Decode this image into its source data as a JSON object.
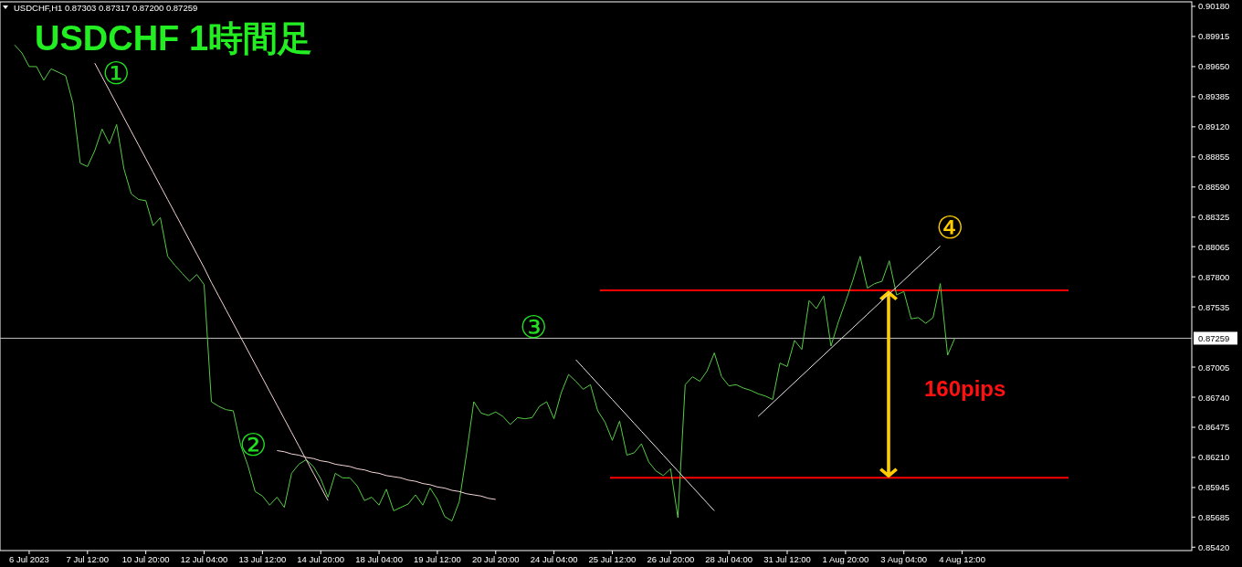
{
  "chart_data": {
    "type": "line",
    "title": "USDCHF 1時間足",
    "annotations": [
      "USDCHF,H1 0.87303 0.87317 0.87200 0.87259",
      "①",
      "②",
      "③",
      "④",
      "160pips"
    ],
    "categories": [
      null,
      null,
      "6 Jul 2023",
      null,
      null,
      null,
      null,
      null,
      null,
      null,
      "7 Jul 12:00",
      null,
      null,
      null,
      null,
      null,
      null,
      null,
      "10 Jul 20:00",
      null,
      null,
      null,
      null,
      null,
      null,
      null,
      "12 Jul 04:00",
      null,
      null,
      null,
      null,
      null,
      null,
      null,
      "13 Jul 12:00",
      null,
      null,
      null,
      null,
      null,
      null,
      null,
      "14 Jul 20:00",
      null,
      null,
      null,
      null,
      null,
      null,
      null,
      "18 Jul 04:00",
      null,
      null,
      null,
      null,
      null,
      null,
      null,
      "19 Jul 12:00",
      null,
      null,
      null,
      null,
      null,
      null,
      null,
      "20 Jul 20:00",
      null,
      null,
      null,
      null,
      null,
      null,
      null,
      "24 Jul 04:00",
      null,
      null,
      null,
      null,
      null,
      null,
      null,
      "25 Jul 12:00",
      null,
      null,
      null,
      null,
      null,
      null,
      null,
      "26 Jul 20:00",
      null,
      null,
      null,
      null,
      null,
      null,
      null,
      "28 Jul 04:00",
      null,
      null,
      null,
      null,
      null,
      null,
      null,
      "31 Jul 12:00",
      null,
      null,
      null,
      null,
      null,
      null,
      null,
      "1 Aug 20:00",
      null,
      null,
      null,
      null,
      null,
      null,
      null,
      "3 Aug 04:00",
      null,
      null,
      null,
      null,
      null,
      null,
      null,
      "4 Aug 12:00",
      null,
      null,
      null,
      null,
      null,
      null,
      null,
      null,
      null,
      null,
      null,
      null,
      null,
      null,
      null,
      null,
      null,
      null,
      null,
      null,
      null,
      null,
      null,
      null,
      null,
      null,
      null,
      null,
      null,
      null,
      null
    ],
    "ylim": [
      0.8539,
      0.9022
    ],
    "yticks": [
      {
        "value": 0.9018,
        "label": "0.90180"
      },
      {
        "value": 0.89915,
        "label": "0.89915"
      },
      {
        "value": 0.8965,
        "label": "0.89650"
      },
      {
        "value": 0.89385,
        "label": "0.89385"
      },
      {
        "value": 0.8912,
        "label": "0.89120"
      },
      {
        "value": 0.88855,
        "label": "0.88855"
      },
      {
        "value": 0.8859,
        "label": "0.88590"
      },
      {
        "value": 0.88325,
        "label": "0.88325"
      },
      {
        "value": 0.88065,
        "label": "0.88065"
      },
      {
        "value": 0.878,
        "label": "0.87800"
      },
      {
        "value": 0.87535,
        "label": "0.87535"
      },
      {
        "value": 0.87005,
        "label": "0.87005"
      },
      {
        "value": 0.8674,
        "label": "0.86740"
      },
      {
        "value": 0.86475,
        "label": "0.86475"
      },
      {
        "value": 0.8621,
        "label": "0.86210"
      },
      {
        "value": 0.85945,
        "label": "0.85945"
      },
      {
        "value": 0.85685,
        "label": "0.85685"
      },
      {
        "value": 0.8542,
        "label": "0.85420"
      }
    ],
    "ref_lines": [
      {
        "axis": "y",
        "value": 0.87259,
        "label": "0.87259",
        "color": "#c0c0c0"
      },
      {
        "axis": "y",
        "value": 0.8768,
        "color": "#ff0000"
      },
      {
        "axis": "y",
        "value": 0.8603,
        "color": "#ff0000"
      }
    ],
    "series": [
      {
        "color": "#55cc44",
        "values": [
          0.8984,
          0.8977,
          0.8965,
          0.8965,
          0.8953,
          0.8963,
          0.896,
          0.8957,
          0.8933,
          0.888,
          0.8877,
          0.8891,
          0.891,
          0.8897,
          0.8914,
          0.8875,
          0.8853,
          0.8848,
          0.8847,
          0.8825,
          0.8832,
          0.8798,
          0.879,
          0.8783,
          0.8776,
          0.8782,
          0.8773,
          0.867,
          0.8666,
          0.8663,
          0.8662,
          0.8632,
          0.8614,
          0.8591,
          0.8587,
          0.8579,
          0.8586,
          0.8577,
          0.8607,
          0.8615,
          0.8619,
          0.8613,
          0.8602,
          0.8586,
          0.8607,
          0.8603,
          0.8603,
          0.8596,
          0.8583,
          0.8586,
          0.8579,
          0.8593,
          0.8574,
          0.8577,
          0.858,
          0.8588,
          0.8579,
          0.8594,
          0.8584,
          0.8569,
          0.8565,
          0.8582,
          0.8624,
          0.867,
          0.866,
          0.8658,
          0.8661,
          0.8657,
          0.865,
          0.8656,
          0.8655,
          0.8656,
          0.8666,
          0.867,
          0.8655,
          0.8678,
          0.8694,
          0.8688,
          0.8681,
          0.8685,
          0.8662,
          0.8652,
          0.8636,
          0.8653,
          0.8623,
          0.8625,
          0.8633,
          0.8617,
          0.8609,
          0.8605,
          0.8611,
          0.8568,
          0.8685,
          0.8692,
          0.8688,
          0.8697,
          0.8713,
          0.8692,
          0.8684,
          0.8685,
          0.8682,
          0.868,
          0.8677,
          0.8675,
          0.8672,
          0.8704,
          0.8701,
          0.8724,
          0.8716,
          0.8759,
          0.8752,
          0.8763,
          0.8719,
          0.874,
          0.8758,
          0.8777,
          0.8798,
          0.877,
          0.8774,
          0.8776,
          0.8794,
          0.8764,
          0.8767,
          0.8743,
          0.8744,
          0.8739,
          0.8744,
          0.8774,
          0.8711,
          0.8726,
          null,
          null,
          null,
          null,
          null,
          null,
          null,
          null,
          null,
          null,
          null,
          null,
          null,
          null,
          null,
          null,
          null,
          null,
          null,
          null,
          null,
          null,
          null,
          null,
          null,
          null,
          null,
          null,
          null,
          null,
          null,
          null
        ]
      },
      {
        "color": "#f4d4d4",
        "values": [
          null,
          null,
          null,
          null,
          null,
          null,
          null,
          null,
          null,
          null,
          null,
          0.8968,
          0.8956,
          0.8944,
          0.8932,
          0.892,
          0.8908,
          0.8896,
          0.8884,
          0.8872,
          0.886,
          0.8848,
          0.8836,
          0.8824,
          0.8812,
          0.88,
          0.8788,
          0.8775,
          0.8763,
          0.8751,
          0.8739,
          0.8727,
          0.8715,
          0.8703,
          0.8691,
          0.8679,
          0.8667,
          0.8655,
          0.8643,
          0.8631,
          0.8619,
          0.8607,
          0.8595,
          0.8583,
          null,
          null,
          null,
          null,
          null,
          null,
          null,
          null,
          null,
          null,
          null,
          null,
          null,
          null,
          null,
          null,
          null,
          null,
          null,
          null,
          null,
          null,
          null,
          null,
          null,
          null,
          null,
          null,
          null,
          null,
          null,
          null,
          null,
          null,
          null,
          null,
          null,
          null,
          null,
          null,
          null,
          null,
          null,
          null,
          null,
          null,
          null,
          null,
          null,
          null,
          null,
          null,
          null,
          null,
          null,
          null,
          null,
          null,
          null,
          null,
          null,
          null,
          null,
          null,
          null,
          null,
          null,
          null,
          null,
          null,
          null,
          null,
          null,
          null,
          null,
          null,
          null,
          null,
          null,
          null,
          null,
          null,
          null,
          null,
          null,
          null,
          null,
          null,
          null,
          null,
          null,
          null,
          null,
          null,
          null,
          null,
          null,
          null,
          null,
          null,
          null,
          null,
          null,
          null,
          null,
          null,
          null,
          null,
          null,
          null,
          null,
          null,
          null,
          null,
          null,
          null,
          null,
          null
        ]
      },
      {
        "color": "#f4d4d4",
        "values": [
          null,
          null,
          null,
          null,
          null,
          null,
          null,
          null,
          null,
          null,
          null,
          null,
          null,
          null,
          null,
          null,
          null,
          null,
          null,
          null,
          null,
          null,
          null,
          null,
          null,
          null,
          null,
          null,
          null,
          null,
          null,
          null,
          null,
          null,
          null,
          null,
          0.8627,
          0.8626,
          0.8624,
          0.8623,
          0.8621,
          0.862,
          0.8618,
          0.8617,
          0.8615,
          0.8614,
          0.8613,
          0.8611,
          0.861,
          0.8608,
          0.8607,
          0.8605,
          0.8604,
          0.8603,
          0.8601,
          0.86,
          0.8598,
          0.8597,
          0.8595,
          0.8594,
          0.8592,
          0.8591,
          0.8589,
          0.8588,
          0.8587,
          0.8585,
          0.8584,
          null,
          null,
          null,
          null,
          null,
          null,
          null,
          null,
          null,
          null,
          null,
          null,
          null,
          null,
          null,
          null,
          null,
          null,
          null,
          null,
          null,
          null,
          null,
          null,
          null,
          null,
          null,
          null,
          null,
          null,
          null,
          null,
          null,
          null,
          null,
          null,
          null,
          null,
          null,
          null,
          null,
          null,
          null,
          null,
          null,
          null,
          null,
          null,
          null,
          null,
          null,
          null,
          null,
          null,
          null,
          null,
          null,
          null,
          null,
          null,
          null,
          null,
          null,
          null,
          null,
          null,
          null,
          null,
          null,
          null,
          null,
          null,
          null,
          null,
          null,
          null,
          null,
          null,
          null,
          null,
          null,
          null,
          null,
          null,
          null,
          null,
          null,
          null,
          null,
          null,
          null,
          null,
          null,
          null,
          null
        ]
      },
      {
        "color": "#e8e8e8",
        "values": [
          null,
          null,
          null,
          null,
          null,
          null,
          null,
          null,
          null,
          null,
          null,
          null,
          null,
          null,
          null,
          null,
          null,
          null,
          null,
          null,
          null,
          null,
          null,
          null,
          null,
          null,
          null,
          null,
          null,
          null,
          null,
          null,
          null,
          null,
          null,
          null,
          null,
          null,
          null,
          null,
          null,
          null,
          null,
          null,
          null,
          null,
          null,
          null,
          null,
          null,
          null,
          null,
          null,
          null,
          null,
          null,
          null,
          null,
          null,
          null,
          null,
          null,
          null,
          null,
          null,
          null,
          null,
          null,
          null,
          null,
          null,
          null,
          null,
          null,
          null,
          null,
          null,
          0.8707,
          0.87,
          0.8693,
          0.8686,
          0.8679,
          0.8672,
          0.8665,
          0.8658,
          0.8651,
          0.8644,
          0.8637,
          0.863,
          0.8623,
          0.8616,
          0.8609,
          0.8602,
          0.8595,
          0.8588,
          0.8581,
          0.8574,
          null,
          null,
          null,
          null,
          null,
          null,
          null,
          null,
          null,
          null,
          null,
          null,
          null,
          null,
          null,
          null,
          null,
          null,
          null,
          null,
          null,
          null,
          null,
          null,
          null,
          null,
          null,
          null,
          null,
          null,
          null,
          null,
          null,
          null,
          null,
          null,
          null,
          null,
          null,
          null,
          null,
          null,
          null,
          null,
          null,
          null,
          null,
          null,
          null,
          null,
          null,
          null,
          null,
          null,
          null,
          null,
          null,
          null,
          null,
          null,
          null,
          null,
          null,
          null,
          null
        ]
      },
      {
        "color": "#e8e8e8",
        "values": [
          null,
          null,
          null,
          null,
          null,
          null,
          null,
          null,
          null,
          null,
          null,
          null,
          null,
          null,
          null,
          null,
          null,
          null,
          null,
          null,
          null,
          null,
          null,
          null,
          null,
          null,
          null,
          null,
          null,
          null,
          null,
          null,
          null,
          null,
          null,
          null,
          null,
          null,
          null,
          null,
          null,
          null,
          null,
          null,
          null,
          null,
          null,
          null,
          null,
          null,
          null,
          null,
          null,
          null,
          null,
          null,
          null,
          null,
          null,
          null,
          null,
          null,
          null,
          null,
          null,
          null,
          null,
          null,
          null,
          null,
          null,
          null,
          null,
          null,
          null,
          null,
          null,
          null,
          null,
          null,
          null,
          null,
          null,
          null,
          null,
          null,
          null,
          null,
          null,
          null,
          null,
          null,
          null,
          null,
          null,
          null,
          null,
          null,
          null,
          null,
          null,
          null,
          0.8657,
          0.8663,
          0.8669,
          0.8675,
          0.8681,
          0.8687,
          0.8693,
          0.8699,
          0.8705,
          0.8711,
          0.8717,
          0.8723,
          0.8729,
          0.8735,
          0.8741,
          0.8747,
          0.8753,
          0.8759,
          0.8765,
          0.8771,
          0.8777,
          0.8783,
          0.8789,
          0.8795,
          0.8801,
          0.8807,
          null,
          null,
          null,
          null,
          null,
          null,
          null,
          null,
          null,
          null,
          null,
          null,
          null,
          null,
          null,
          null,
          null,
          null,
          null,
          null,
          null,
          null,
          null,
          null,
          null,
          null,
          null,
          null,
          null,
          null,
          null,
          null,
          null,
          null
        ]
      }
    ]
  }
}
